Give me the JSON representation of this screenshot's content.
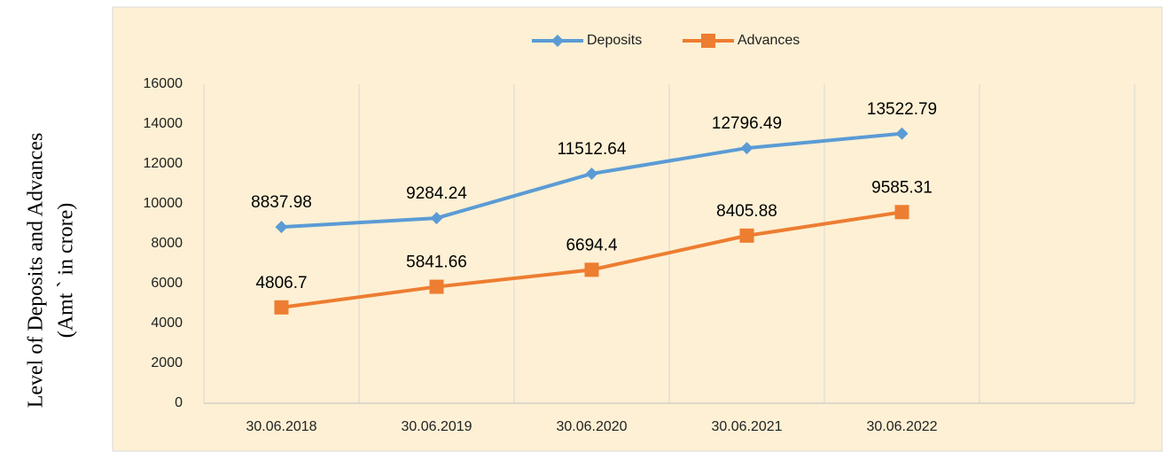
{
  "chart_data": {
    "type": "line",
    "ylabel": [
      "Level of Deposits and Advances",
      "(Amt ` in crore)"
    ],
    "categories": [
      "30.06.2018",
      "30.06.2019",
      "30.06.2020",
      "30.06.2021",
      "30.06.2022",
      null
    ],
    "series": [
      {
        "name": "Deposits",
        "color": "#5b9bd5",
        "marker": "diamond",
        "values": [
          8837.98,
          9284.24,
          11512.64,
          12796.49,
          13522.79,
          null
        ]
      },
      {
        "name": "Advances",
        "color": "#ed7d31",
        "marker": "square",
        "values": [
          4806.7,
          5841.66,
          6694.4,
          8405.88,
          9585.31,
          null
        ]
      }
    ],
    "ylim": [
      0,
      16000
    ],
    "yticks": [
      0,
      2000,
      4000,
      6000,
      8000,
      10000,
      12000,
      14000,
      16000
    ],
    "grid": true,
    "legend": "top"
  }
}
